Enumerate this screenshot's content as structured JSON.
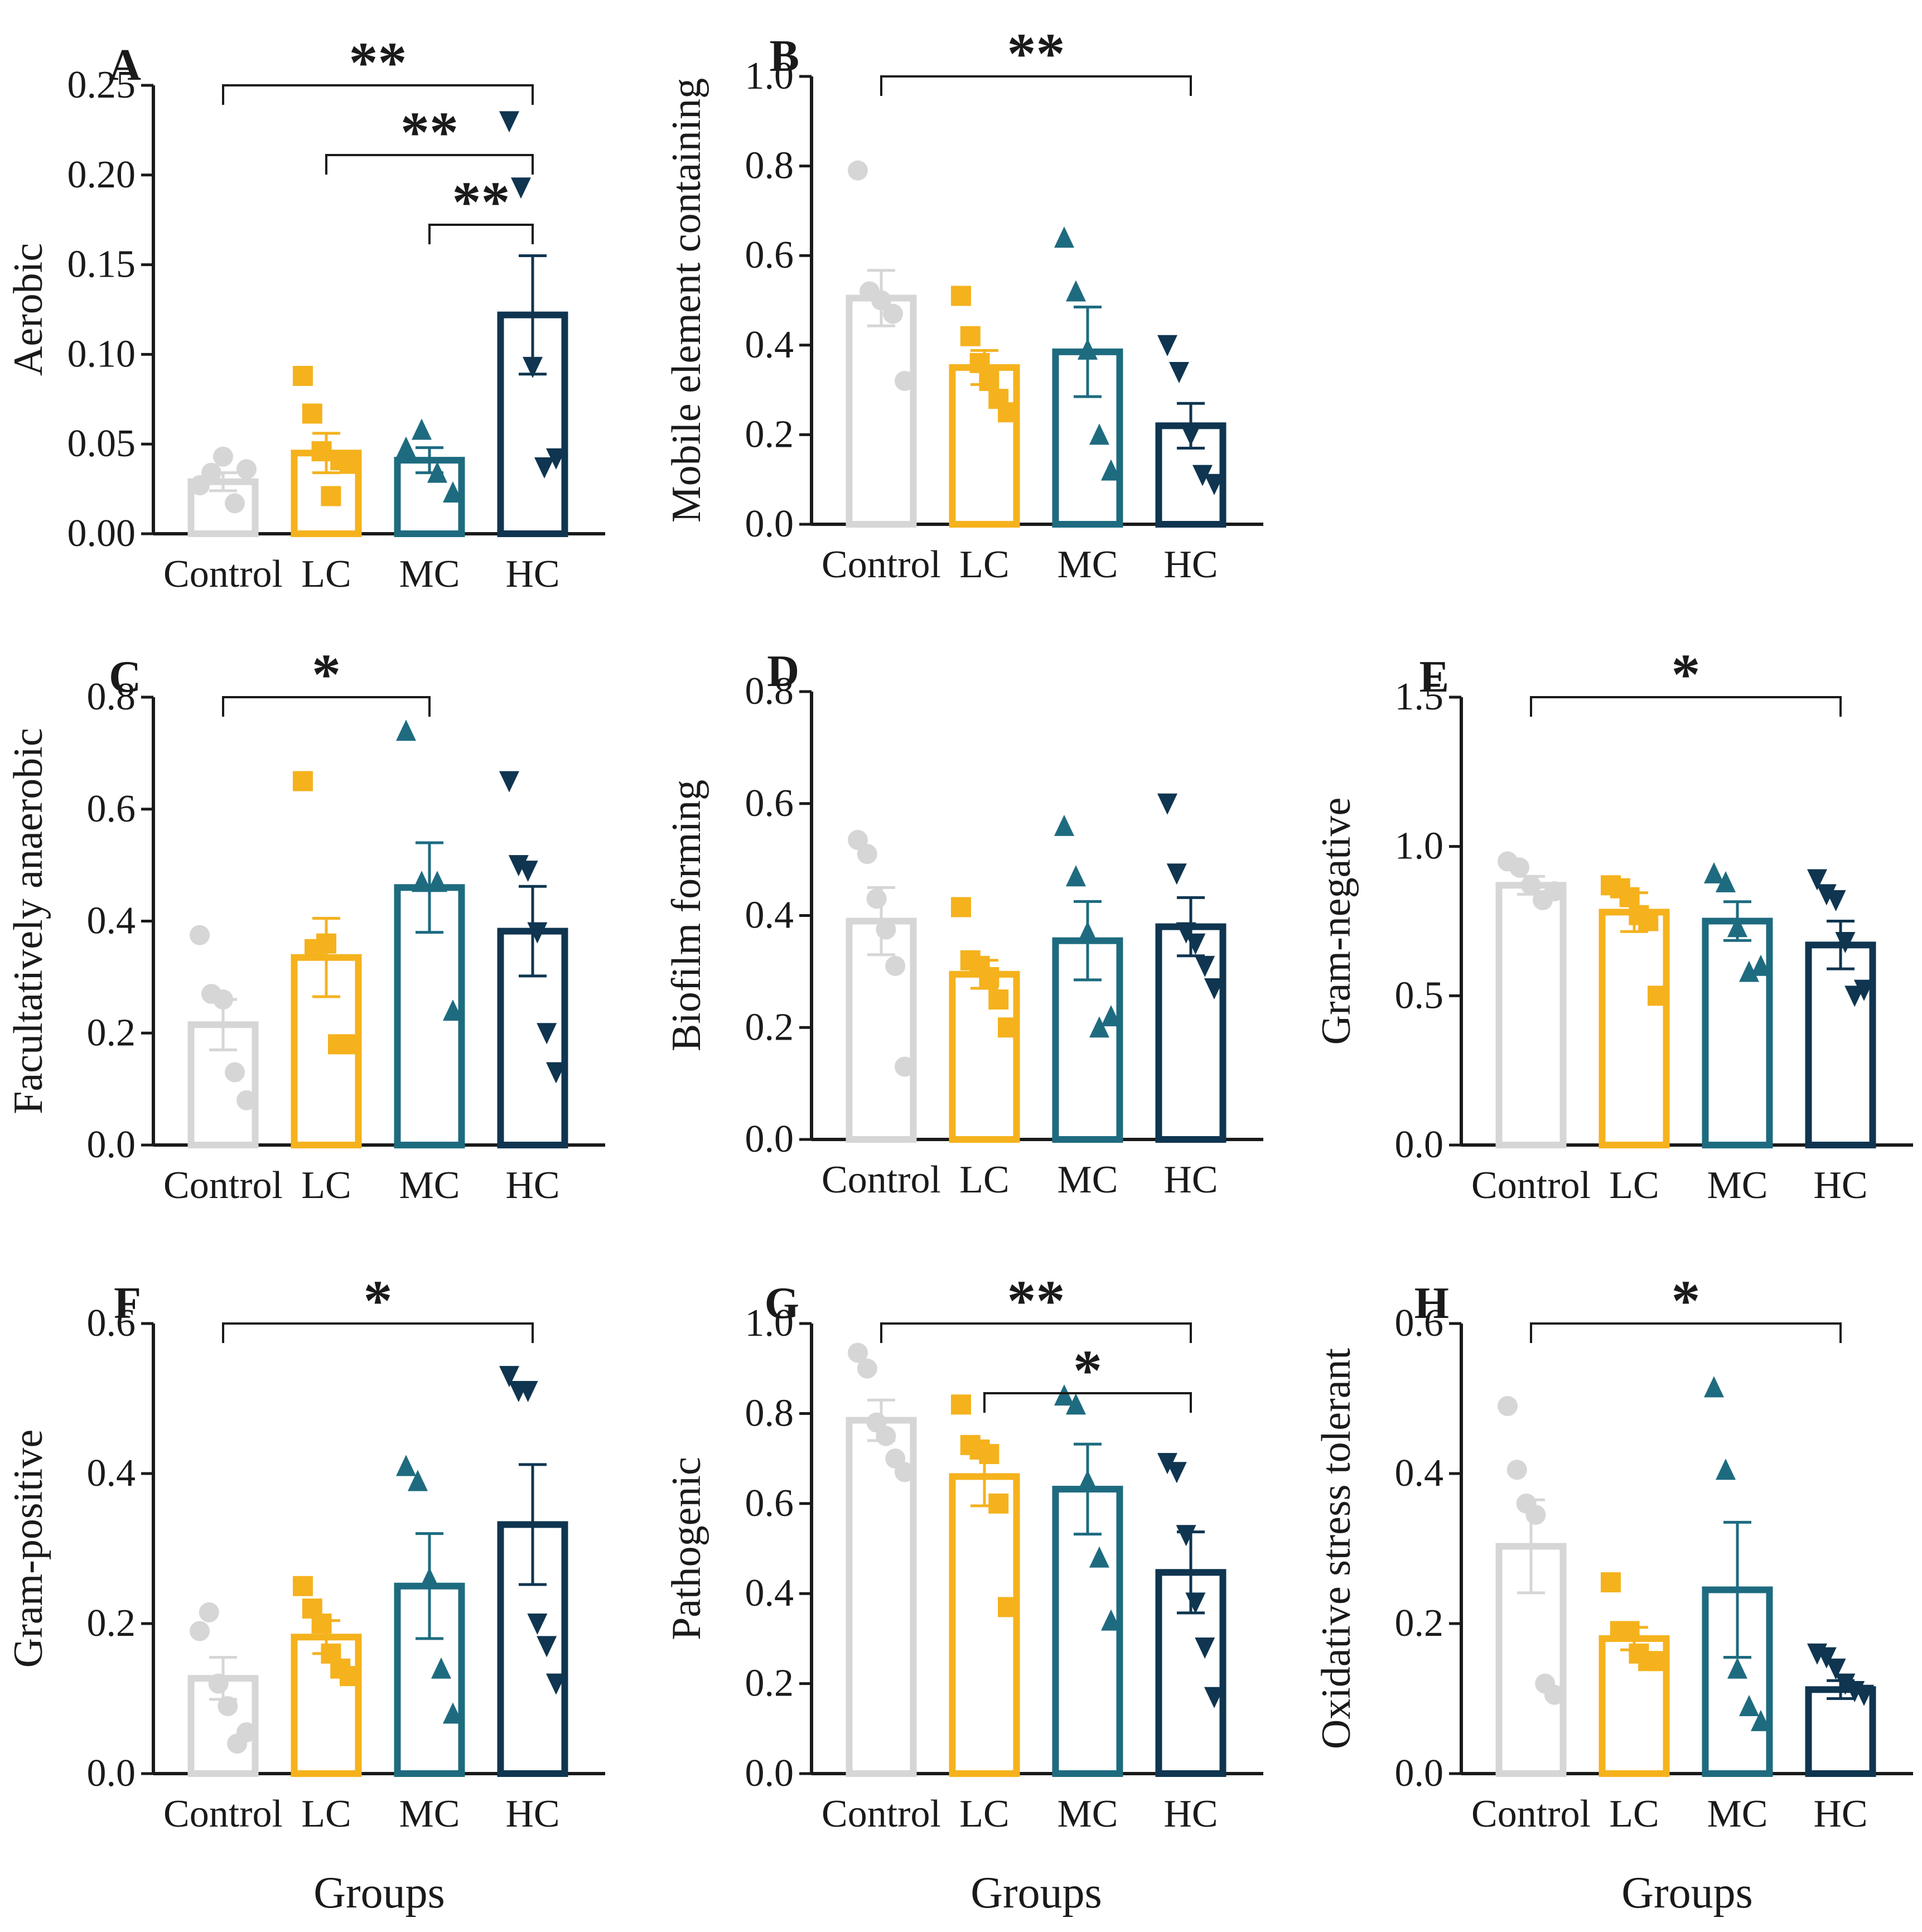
{
  "groups": [
    "Control",
    "LC",
    "MC",
    "HC"
  ],
  "group_colors": [
    "#d6d6d6",
    "#f5b21d",
    "#1e6b80",
    "#0f3550"
  ],
  "x_axis_title": "Groups",
  "chart_data": [
    {
      "type": "bar",
      "panel": "A",
      "ylabel": "Aerobic",
      "categories": [
        "Control",
        "LC",
        "MC",
        "HC"
      ],
      "ylim": [
        0,
        0.25
      ],
      "ticks": [
        "0.00",
        "0.05",
        "0.10",
        "0.15",
        "0.20",
        "0.25"
      ],
      "values": [
        0.029,
        0.045,
        0.041,
        0.122
      ],
      "sem": [
        0.005,
        0.011,
        0.007,
        0.033
      ],
      "points": [
        [
          0.027,
          0.034,
          0.043,
          0.017,
          0.036
        ],
        [
          0.088,
          0.067,
          0.046,
          0.021,
          0.041,
          0.039
        ],
        [
          0.048,
          0.058,
          0.034,
          0.023
        ],
        [
          0.23,
          0.193,
          0.093,
          0.037,
          0.042
        ]
      ],
      "significance": [
        {
          "from": 0,
          "to": 3,
          "label": "**"
        },
        {
          "from": 1,
          "to": 3,
          "label": "**"
        },
        {
          "from": 2,
          "to": 3,
          "label": "**"
        }
      ]
    },
    {
      "type": "bar",
      "panel": "B",
      "ylabel": "Mobile element containing",
      "categories": [
        "Control",
        "LC",
        "MC",
        "HC"
      ],
      "ylim": [
        0,
        1.0
      ],
      "ticks": [
        "0.0",
        "0.2",
        "0.4",
        "0.6",
        "0.8",
        "1.0"
      ],
      "values": [
        0.505,
        0.35,
        0.385,
        0.22
      ],
      "sem": [
        0.062,
        0.038,
        0.1,
        0.05
      ],
      "points": [
        [
          0.79,
          0.52,
          0.5,
          0.47,
          0.32
        ],
        [
          0.51,
          0.42,
          0.36,
          0.32,
          0.28,
          0.25
        ],
        [
          0.64,
          0.52,
          0.39,
          0.2,
          0.12
        ],
        [
          0.4,
          0.34,
          0.2,
          0.11,
          0.09
        ]
      ],
      "significance": [
        {
          "from": 0,
          "to": 3,
          "label": "**"
        }
      ]
    },
    {
      "type": "bar",
      "panel": "C",
      "ylabel": "Facultatively anaerobic",
      "categories": [
        "Control",
        "LC",
        "MC",
        "HC"
      ],
      "ylim": [
        0,
        0.8
      ],
      "ticks": [
        "0.0",
        "0.2",
        "0.4",
        "0.6",
        "0.8"
      ],
      "values": [
        0.215,
        0.335,
        0.46,
        0.382
      ],
      "sem": [
        0.045,
        0.07,
        0.08,
        0.08
      ],
      "points": [
        [
          0.375,
          0.27,
          0.26,
          0.13,
          0.08
        ],
        [
          0.65,
          0.35,
          0.36,
          0.18,
          0.18
        ],
        [
          0.74,
          0.47,
          0.47,
          0.24
        ],
        [
          0.65,
          0.5,
          0.49,
          0.38,
          0.2,
          0.13
        ]
      ],
      "significance": [
        {
          "from": 0,
          "to": 2,
          "label": "*"
        }
      ]
    },
    {
      "type": "bar",
      "panel": "D",
      "ylabel": "Biofilm forming",
      "categories": [
        "Control",
        "LC",
        "MC",
        "HC"
      ],
      "ylim": [
        0,
        0.8
      ],
      "ticks": [
        "0.0",
        "0.2",
        "0.4",
        "0.6",
        "0.8"
      ],
      "values": [
        0.39,
        0.295,
        0.355,
        0.38
      ],
      "sem": [
        0.06,
        0.025,
        0.07,
        0.052
      ],
      "points": [
        [
          0.535,
          0.51,
          0.43,
          0.375,
          0.31,
          0.13
        ],
        [
          0.415,
          0.32,
          0.31,
          0.29,
          0.25,
          0.2
        ],
        [
          0.56,
          0.47,
          0.37,
          0.2,
          0.22
        ],
        [
          0.6,
          0.475,
          0.37,
          0.35,
          0.31,
          0.27
        ]
      ],
      "significance": []
    },
    {
      "type": "bar",
      "panel": "E",
      "ylabel": "Gram-negative",
      "categories": [
        "Control",
        "LC",
        "MC",
        "HC"
      ],
      "ylim": [
        0,
        1.5
      ],
      "ticks": [
        "0.0",
        "0.5",
        "1.0",
        "1.5"
      ],
      "values": [
        0.87,
        0.78,
        0.75,
        0.67
      ],
      "sem": [
        0.03,
        0.065,
        0.065,
        0.08
      ],
      "points": [
        [
          0.95,
          0.93,
          0.87,
          0.82,
          0.85
        ],
        [
          0.87,
          0.86,
          0.83,
          0.77,
          0.75,
          0.5
        ],
        [
          0.91,
          0.88,
          0.73,
          0.58,
          0.6
        ],
        [
          0.89,
          0.84,
          0.82,
          0.68,
          0.5,
          0.52
        ]
      ],
      "significance": [
        {
          "from": 0,
          "to": 3,
          "label": "*"
        }
      ]
    },
    {
      "type": "bar",
      "panel": "F",
      "ylabel": "Gram-positive",
      "categories": [
        "Control",
        "LC",
        "MC",
        "HC"
      ],
      "ylim": [
        0,
        0.6
      ],
      "ticks": [
        "0.0",
        "0.2",
        "0.4",
        "0.6"
      ],
      "values": [
        0.127,
        0.182,
        0.25,
        0.332
      ],
      "sem": [
        0.028,
        0.022,
        0.07,
        0.08
      ],
      "points": [
        [
          0.19,
          0.215,
          0.12,
          0.09,
          0.04,
          0.055
        ],
        [
          0.25,
          0.22,
          0.2,
          0.16,
          0.14,
          0.13
        ],
        [
          0.41,
          0.39,
          0.26,
          0.14,
          0.08
        ],
        [
          0.53,
          0.51,
          0.51,
          0.2,
          0.17,
          0.12
        ]
      ],
      "significance": [
        {
          "from": 0,
          "to": 3,
          "label": "*"
        }
      ]
    },
    {
      "type": "bar",
      "panel": "G",
      "ylabel": "Pathogenic",
      "categories": [
        "Control",
        "LC",
        "MC",
        "HC"
      ],
      "ylim": [
        0,
        1.0
      ],
      "ticks": [
        "0.0",
        "0.2",
        "0.4",
        "0.6",
        "0.8",
        "1.0"
      ],
      "values": [
        0.785,
        0.66,
        0.632,
        0.447
      ],
      "sem": [
        0.045,
        0.065,
        0.1,
        0.09
      ],
      "points": [
        [
          0.935,
          0.9,
          0.78,
          0.75,
          0.7,
          0.67
        ],
        [
          0.82,
          0.73,
          0.72,
          0.71,
          0.6,
          0.37
        ],
        [
          0.84,
          0.82,
          0.65,
          0.48,
          0.34
        ],
        [
          0.69,
          0.67,
          0.53,
          0.38,
          0.28,
          0.17
        ]
      ],
      "significance": [
        {
          "from": 0,
          "to": 3,
          "label": "**"
        },
        {
          "from": 1,
          "to": 3,
          "label": "*"
        }
      ]
    },
    {
      "type": "bar",
      "panel": "H",
      "ylabel": "Oxidative stress tolerant",
      "categories": [
        "Control",
        "LC",
        "MC",
        "HC"
      ],
      "ylim": [
        0,
        0.6
      ],
      "ticks": [
        "0.0",
        "0.2",
        "0.4",
        "0.6"
      ],
      "values": [
        0.303,
        0.18,
        0.245,
        0.112
      ],
      "sem": [
        0.062,
        0.015,
        0.09,
        0.012
      ],
      "points": [
        [
          0.49,
          0.405,
          0.36,
          0.345,
          0.12,
          0.105
        ],
        [
          0.255,
          0.19,
          0.19,
          0.16,
          0.15,
          0.15
        ],
        [
          0.515,
          0.405,
          0.14,
          0.09,
          0.07
        ],
        [
          0.16,
          0.155,
          0.14,
          0.12,
          0.11,
          0.105
        ]
      ],
      "significance": [
        {
          "from": 0,
          "to": 3,
          "label": "*"
        }
      ]
    }
  ]
}
